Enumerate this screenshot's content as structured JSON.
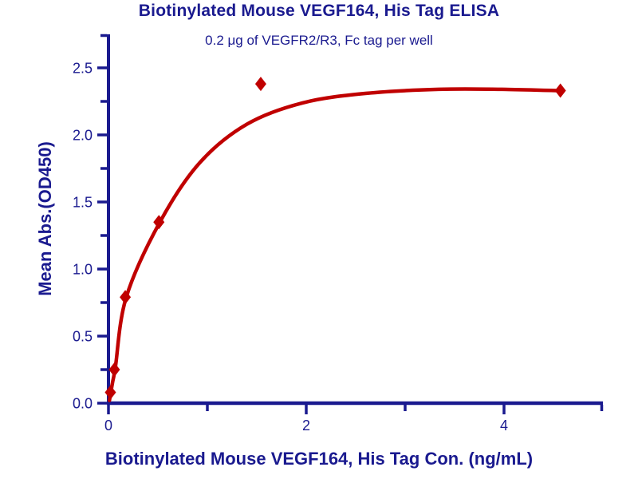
{
  "header": {
    "title": "Biotinylated Mouse VEGF164, His Tag ELISA",
    "subtitle": "0.2 μg of VEGFR2/R3, Fc tag per well"
  },
  "chart_data": {
    "type": "scatter",
    "title": "Biotinylated Mouse VEGF164, His Tag ELISA",
    "subtitle": "0.2 μg of VEGFR2/R3, Fc tag per well",
    "xlabel": "Biotinylated Mouse VEGF164, His Tag Con. (ng/mL)",
    "ylabel": "Mean Abs.(OD450)",
    "xlim": [
      0,
      5
    ],
    "ylim": [
      0,
      2.75
    ],
    "grid": false,
    "legend": false,
    "x_major_ticks": [
      {
        "v": 0,
        "label": "0"
      },
      {
        "v": 2,
        "label": "2"
      },
      {
        "v": 4,
        "label": "4"
      }
    ],
    "x_minor_ticks": [
      1,
      3,
      5
    ],
    "y_major_ticks": [
      {
        "v": 0.0,
        "label": "0.0"
      },
      {
        "v": 0.5,
        "label": "0.5"
      },
      {
        "v": 1.0,
        "label": "1.0"
      },
      {
        "v": 1.5,
        "label": "1.5"
      },
      {
        "v": 2.0,
        "label": "2.0"
      },
      {
        "v": 2.5,
        "label": "2.5"
      }
    ],
    "y_minor_ticks": [
      0.25,
      0.75,
      1.25,
      1.75,
      2.25,
      2.75
    ],
    "series": [
      {
        "name": "Biotinylated Mouse VEGF164, His Tag",
        "marker": "diamond",
        "points": [
          {
            "x": 0.02,
            "y": 0.08
          },
          {
            "x": 0.06,
            "y": 0.25
          },
          {
            "x": 0.17,
            "y": 0.79
          },
          {
            "x": 0.51,
            "y": 1.35
          },
          {
            "x": 1.54,
            "y": 2.38
          },
          {
            "x": 4.57,
            "y": 2.33
          }
        ]
      }
    ],
    "fit_curve": [
      {
        "x": 0.01,
        "y": 0.02
      },
      {
        "x": 0.04,
        "y": 0.15
      },
      {
        "x": 0.07,
        "y": 0.27
      },
      {
        "x": 0.18,
        "y": 0.79
      },
      {
        "x": 0.52,
        "y": 1.35
      },
      {
        "x": 0.92,
        "y": 1.79
      },
      {
        "x": 1.4,
        "y": 2.08
      },
      {
        "x": 1.97,
        "y": 2.24
      },
      {
        "x": 2.61,
        "y": 2.31
      },
      {
        "x": 3.34,
        "y": 2.34
      },
      {
        "x": 3.98,
        "y": 2.34
      },
      {
        "x": 4.57,
        "y": 2.33
      }
    ]
  },
  "colors": {
    "background": "#FFFFFF",
    "text": "#1A1A8F",
    "axis": "#1A1A8F",
    "curve": "#C00000",
    "marker": "#C00000"
  }
}
